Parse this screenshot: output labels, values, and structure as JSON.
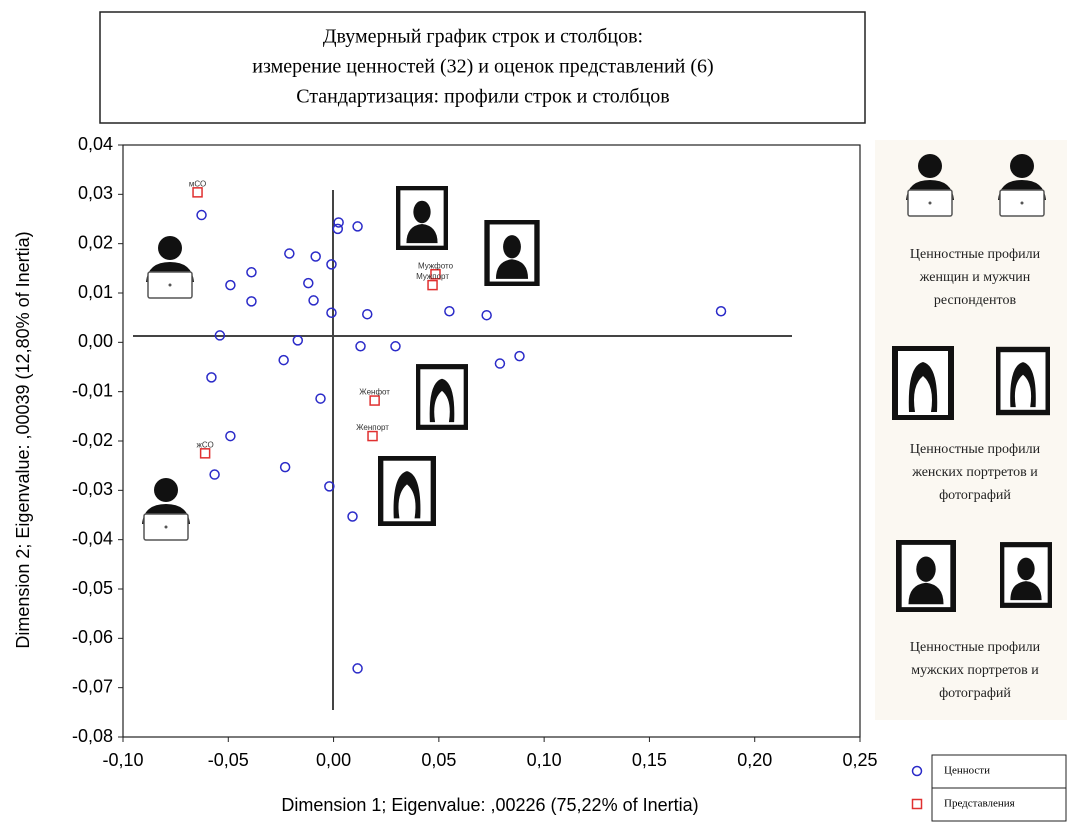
{
  "chart_data": {
    "type": "scatter",
    "title_lines": [
      "Двумерный график строк и столбцов:",
      "измерение ценностей (32) и оценок представлений  (6)",
      "Стандартизация:  профили строк и столбцов"
    ],
    "xlabel": "Dimension 1; Eigenvalue: ,00226 (75,22% of Inertia)",
    "ylabel": "Dimension 2; Eigenvalue: ,00039 (12,80% of Inertia)",
    "xlim": [
      -0.1,
      0.25
    ],
    "ylim": [
      -0.08,
      0.04
    ],
    "xticks": [
      {
        "value": -0.1,
        "label": "-0,10"
      },
      {
        "value": -0.05,
        "label": "-0,05"
      },
      {
        "value": 0,
        "label": "0,00"
      },
      {
        "value": 0.05,
        "label": "0,05"
      },
      {
        "value": 0.1,
        "label": "0,10"
      },
      {
        "value": 0.15,
        "label": "0,15"
      },
      {
        "value": 0.2,
        "label": "0,20"
      },
      {
        "value": 0.25,
        "label": "0,25"
      }
    ],
    "yticks": [
      {
        "value": 0.04,
        "label": "0,04"
      },
      {
        "value": 0.03,
        "label": "0,03"
      },
      {
        "value": 0.02,
        "label": "0,02"
      },
      {
        "value": 0.01,
        "label": "0,01"
      },
      {
        "value": 0,
        "label": "0,00"
      },
      {
        "value": -0.01,
        "label": "-0,01"
      },
      {
        "value": -0.02,
        "label": "-0,02"
      },
      {
        "value": -0.03,
        "label": "-0,03"
      },
      {
        "value": -0.04,
        "label": "-0,04"
      },
      {
        "value": -0.05,
        "label": "-0,05"
      },
      {
        "value": -0.06,
        "label": "-0,06"
      },
      {
        "value": -0.07,
        "label": "-0,07"
      },
      {
        "value": -0.08,
        "label": "-0,08"
      }
    ],
    "series": [
      {
        "name": "Ценности",
        "color": "#2a2ac8",
        "marker": "circle",
        "x": [
          -0.0627,
          0.0024,
          0.002,
          0.0114,
          -0.021,
          -0.0085,
          -0.001,
          -0.039,
          -0.049,
          -0.012,
          -0.039,
          -0.0095,
          -0.001,
          0.016,
          0.055,
          0.0727,
          0.184,
          -0.054,
          -0.017,
          0.0128,
          0.0294,
          -0.0237,
          0.079,
          0.0883,
          -0.058,
          -0.0062,
          -0.049,
          -0.0565,
          -0.023,
          -0.002,
          0.009,
          0.0114
        ],
        "values": [
          0.0258,
          0.0243,
          0.023,
          0.0235,
          0.018,
          0.0174,
          0.0158,
          0.0142,
          0.0116,
          0.012,
          0.0083,
          0.0085,
          0.006,
          0.0057,
          0.0063,
          0.0055,
          0.0063,
          0.0014,
          0.0004,
          -0.0008,
          -0.0008,
          -0.0036,
          -0.0043,
          -0.0028,
          -0.0071,
          -0.0114,
          -0.019,
          -0.0268,
          -0.0253,
          -0.0292,
          -0.0353,
          -0.0661
        ]
      },
      {
        "name": "Представления",
        "color": "#e03030",
        "marker": "square",
        "x": [
          -0.0646,
          0.0484,
          0.047,
          0.0195,
          0.0185,
          -0.061
        ],
        "values": [
          0.0304,
          0.0138,
          0.0116,
          -0.0118,
          -0.019,
          -0.0225
        ],
        "point_labels": [
          "мСО",
          "Мужфото",
          "Мужпорт",
          "Женфот",
          "Женпорт",
          "жСО"
        ]
      }
    ]
  },
  "side_captions": [
    [
      "Ценностные профили",
      "женщин и мужчин",
      "респондентов"
    ],
    [
      "Ценностные профили",
      "женских портретов и",
      "фотографий"
    ],
    [
      "Ценностные профили",
      "мужских портретов и",
      "фотографий"
    ]
  ]
}
